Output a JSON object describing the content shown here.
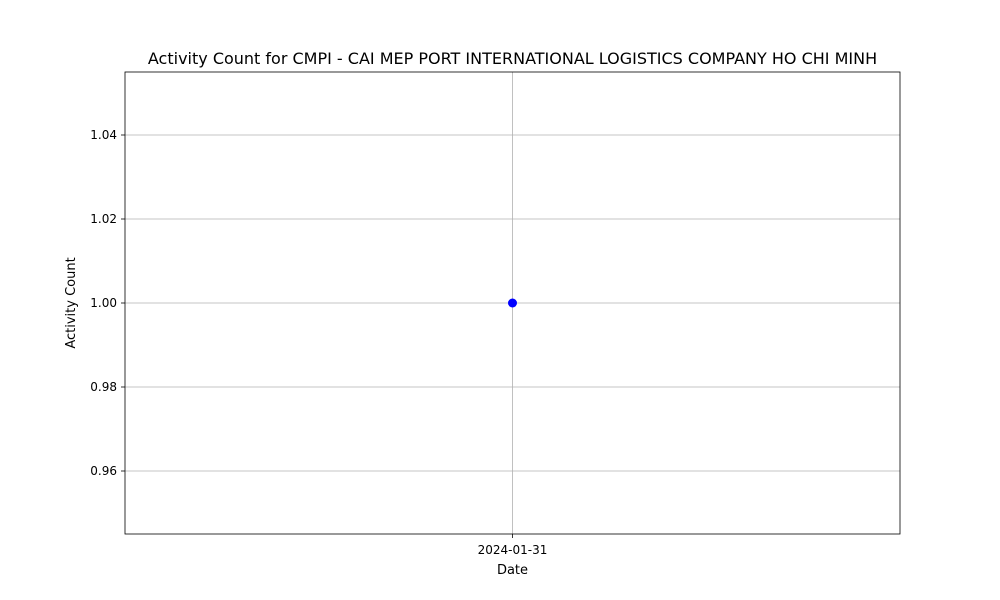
{
  "chart_data": {
    "type": "line",
    "title": "Activity Count for CMPI - CAI MEP PORT INTERNATIONAL LOGISTICS COMPANY HO CHI MINH",
    "xlabel": "Date",
    "ylabel": "Activity Count",
    "categories": [
      "2024-01-31"
    ],
    "series": [
      {
        "values": [
          1.0
        ],
        "color": "#0000ff",
        "marker": "circle"
      }
    ],
    "ylim": [
      0.945,
      1.055
    ],
    "yticks": [
      "0.96",
      "0.98",
      "1.00",
      "1.02",
      "1.04"
    ],
    "grid": true,
    "legend": "none"
  }
}
